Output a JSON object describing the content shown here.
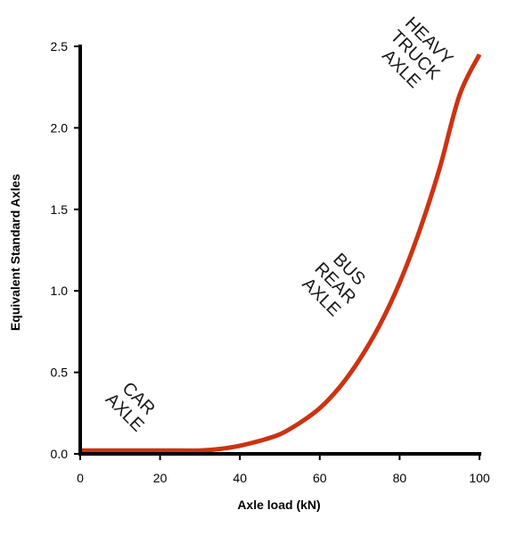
{
  "chart_data": {
    "type": "line",
    "title": "",
    "xlabel": "Axle load (kN)",
    "ylabel": "Equivalent Standard Axles",
    "xlim": [
      0,
      100
    ],
    "ylim": [
      0,
      2.5
    ],
    "x_ticks": [
      "0",
      "20",
      "40",
      "60",
      "80",
      "100"
    ],
    "y_ticks": [
      "0.0",
      "0.5",
      "1.0",
      "1.5",
      "2.0",
      "2.5"
    ],
    "grid": false,
    "legend": "none",
    "line_color": "#cc3311",
    "series": [
      {
        "x": [
          0,
          10,
          20,
          25,
          30,
          35,
          40,
          45,
          50,
          55,
          60,
          65,
          70,
          75,
          80,
          85,
          90,
          95,
          100
        ],
        "values": [
          0.02,
          0.02,
          0.02,
          0.02,
          0.02,
          0.03,
          0.05,
          0.08,
          0.12,
          0.19,
          0.28,
          0.41,
          0.58,
          0.79,
          1.05,
          1.37,
          1.75,
          2.2,
          2.45
        ]
      }
    ],
    "annotations": [
      {
        "lines": [
          "CAR",
          "AXLE"
        ],
        "x": 13,
        "y": 0.3
      },
      {
        "lines": [
          "BUS",
          "REAR",
          "AXLE"
        ],
        "x": 64,
        "y": 1.05
      },
      {
        "lines": [
          "HEAVY",
          "TRUCK",
          "AXLE"
        ],
        "x": 84,
        "y": 2.45
      }
    ]
  }
}
